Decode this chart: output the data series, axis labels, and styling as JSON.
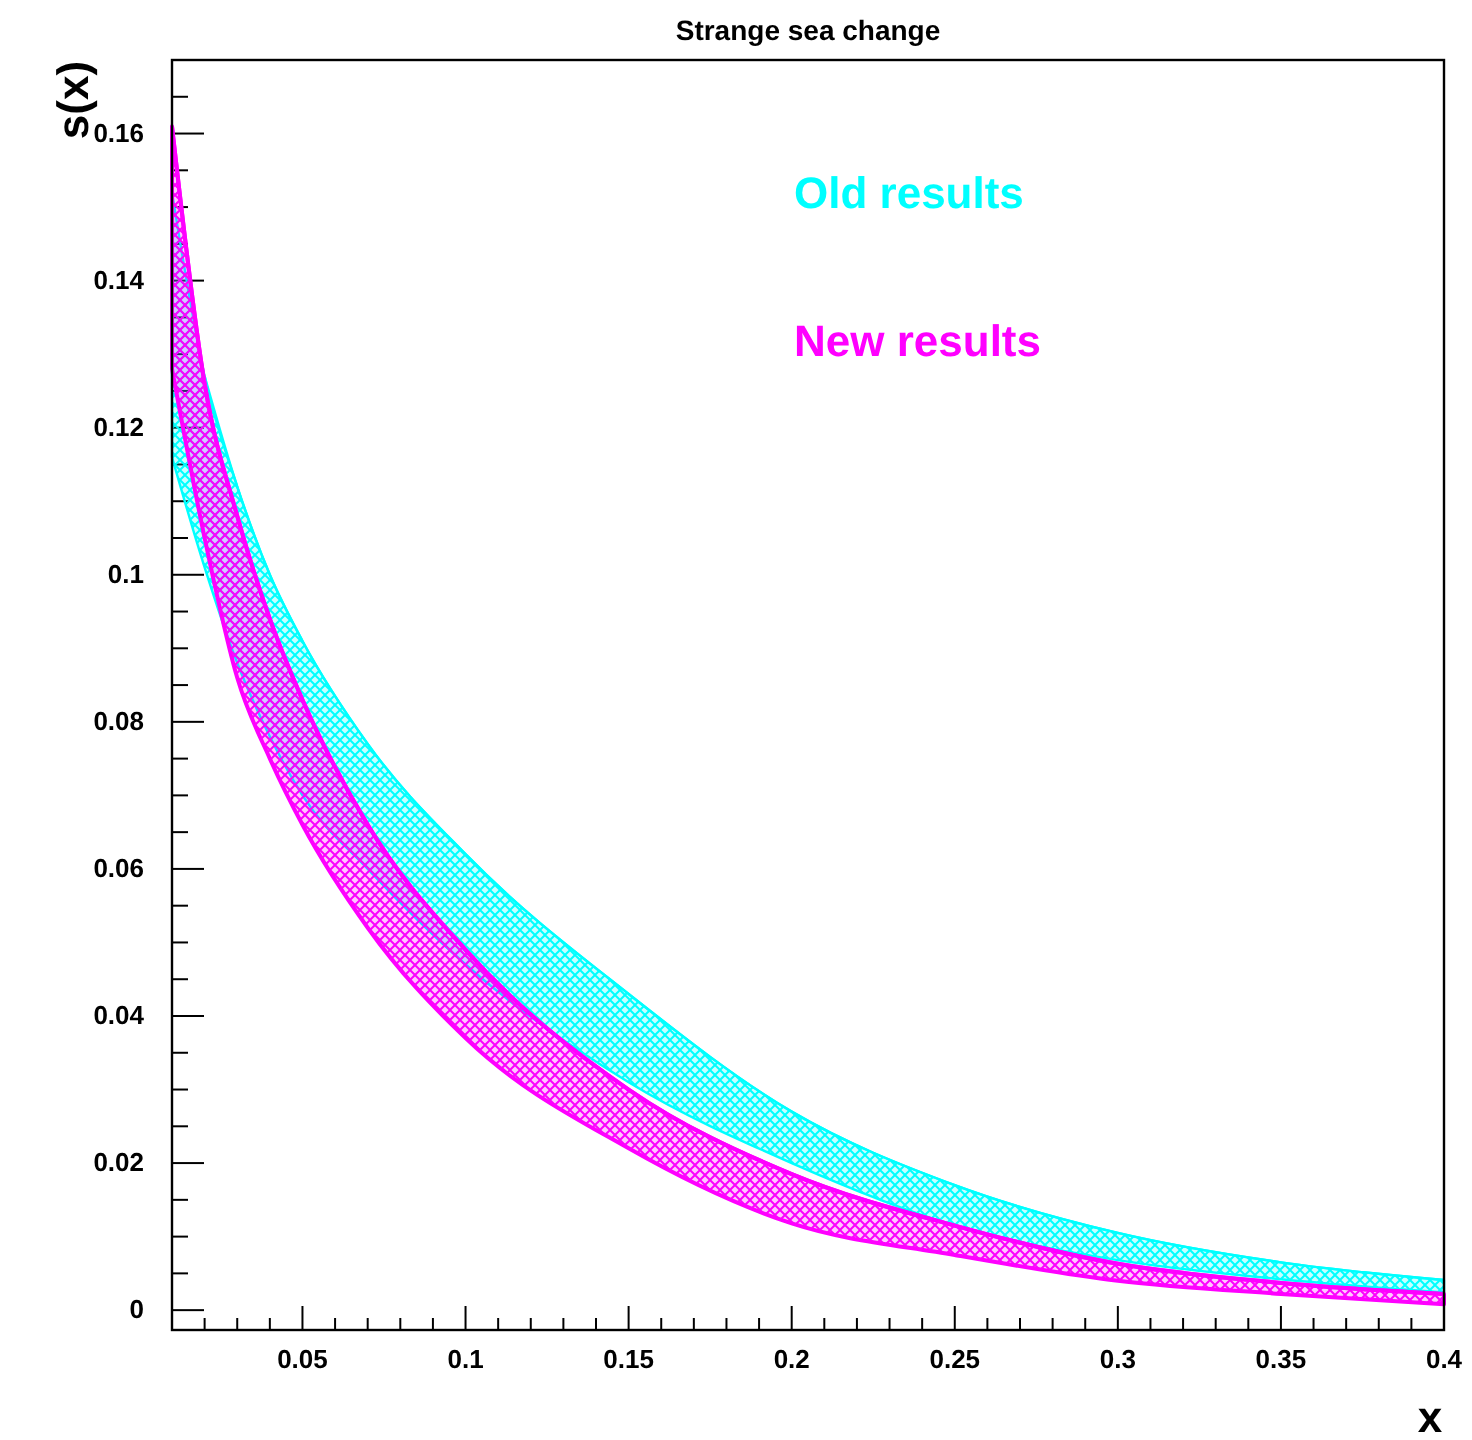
{
  "chart_data": {
    "type": "line",
    "title": "Strange sea change",
    "xlabel": "x",
    "ylabel": "s(x)",
    "x": [
      0.01,
      0.02,
      0.03,
      0.04,
      0.05,
      0.07,
      0.1,
      0.15,
      0.2,
      0.25,
      0.3,
      0.35,
      0.4
    ],
    "series": [
      {
        "name": "Old results",
        "color": "#00ffff",
        "values": [
          null,
          0.127,
          0.112,
          0.1,
          0.091,
          0.077,
          0.062,
          0.043,
          0.027,
          0.017,
          0.0105,
          0.0065,
          0.0041
        ],
        "upper": [
          0.152,
          0.127,
          0.112,
          0.1,
          0.091,
          0.077,
          0.062,
          0.043,
          0.027,
          0.017,
          0.0105,
          0.0065,
          0.0041
        ],
        "lower": [
          0.116,
          0.101,
          0.088,
          0.078,
          0.07,
          0.06,
          0.047,
          0.031,
          0.02,
          0.0115,
          0.0068,
          0.0042,
          0.0024
        ]
      },
      {
        "name": "New results",
        "color": "#ff00ff",
        "values": [
          0.161,
          0.126,
          0.108,
          0.094,
          0.083,
          0.066,
          0.049,
          0.03,
          0.0185,
          0.0115,
          0.0063,
          0.0037,
          0.0022
        ],
        "upper": [
          0.161,
          0.126,
          0.108,
          0.094,
          0.083,
          0.066,
          0.049,
          0.03,
          0.0185,
          0.0115,
          0.0063,
          0.0037,
          0.0022
        ],
        "lower": [
          0.128,
          0.105,
          0.086,
          0.075,
          0.066,
          0.052,
          0.037,
          0.022,
          0.0118,
          0.0075,
          0.004,
          0.0022,
          0.0008
        ]
      }
    ],
    "xlim": [
      0.01,
      0.4
    ],
    "ylim": [
      -0.0027,
      0.17
    ],
    "xticks": [
      {
        "value": 0.02,
        "label": null
      },
      {
        "value": 0.03,
        "label": null
      },
      {
        "value": 0.04,
        "label": null
      },
      0.05,
      {
        "value": 0.06,
        "label": null
      },
      {
        "value": 0.07,
        "label": null
      },
      {
        "value": 0.08,
        "label": null
      },
      {
        "value": 0.09,
        "label": null
      },
      0.1,
      {
        "value": 0.11,
        "label": null
      },
      {
        "value": 0.12,
        "label": null
      },
      {
        "value": 0.13,
        "label": null
      },
      {
        "value": 0.14,
        "label": null
      },
      0.15,
      {
        "value": 0.16,
        "label": null
      },
      {
        "value": 0.17,
        "label": null
      },
      {
        "value": 0.18,
        "label": null
      },
      {
        "value": 0.19,
        "label": null
      },
      0.2,
      {
        "value": 0.21,
        "label": null
      },
      {
        "value": 0.22,
        "label": null
      },
      {
        "value": 0.23,
        "label": null
      },
      {
        "value": 0.24,
        "label": null
      },
      0.25,
      {
        "value": 0.26,
        "label": null
      },
      {
        "value": 0.27,
        "label": null
      },
      {
        "value": 0.28,
        "label": null
      },
      {
        "value": 0.29,
        "label": null
      },
      0.3,
      {
        "value": 0.31,
        "label": null
      },
      {
        "value": 0.32,
        "label": null
      },
      {
        "value": 0.33,
        "label": null
      },
      {
        "value": 0.34,
        "label": null
      },
      0.35,
      {
        "value": 0.36,
        "label": null
      },
      {
        "value": 0.37,
        "label": null
      },
      {
        "value": 0.38,
        "label": null
      },
      {
        "value": 0.39,
        "label": null
      },
      0.4
    ],
    "yticks": [
      0,
      {
        "value": 0.005,
        "label": null
      },
      {
        "value": 0.01,
        "label": null
      },
      {
        "value": 0.015,
        "label": null
      },
      0.02,
      {
        "value": 0.025,
        "label": null
      },
      {
        "value": 0.03,
        "label": null
      },
      {
        "value": 0.035,
        "label": null
      },
      0.04,
      {
        "value": 0.045,
        "label": null
      },
      {
        "value": 0.05,
        "label": null
      },
      {
        "value": 0.055,
        "label": null
      },
      0.06,
      {
        "value": 0.065,
        "label": null
      },
      {
        "value": 0.07,
        "label": null
      },
      {
        "value": 0.075,
        "label": null
      },
      0.08,
      {
        "value": 0.085,
        "label": null
      },
      {
        "value": 0.09,
        "label": null
      },
      {
        "value": 0.095,
        "label": null
      },
      0.1,
      {
        "value": 0.105,
        "label": null
      },
      {
        "value": 0.11,
        "label": null
      },
      {
        "value": 0.115,
        "label": null
      },
      0.12,
      {
        "value": 0.125,
        "label": null
      },
      {
        "value": 0.13,
        "label": null
      },
      {
        "value": 0.135,
        "label": null
      },
      0.14,
      {
        "value": 0.145,
        "label": null
      },
      {
        "value": 0.15,
        "label": null
      },
      {
        "value": 0.155,
        "label": null
      },
      0.16,
      {
        "value": 0.165,
        "label": null
      }
    ],
    "legend": "top right",
    "grid": false
  }
}
